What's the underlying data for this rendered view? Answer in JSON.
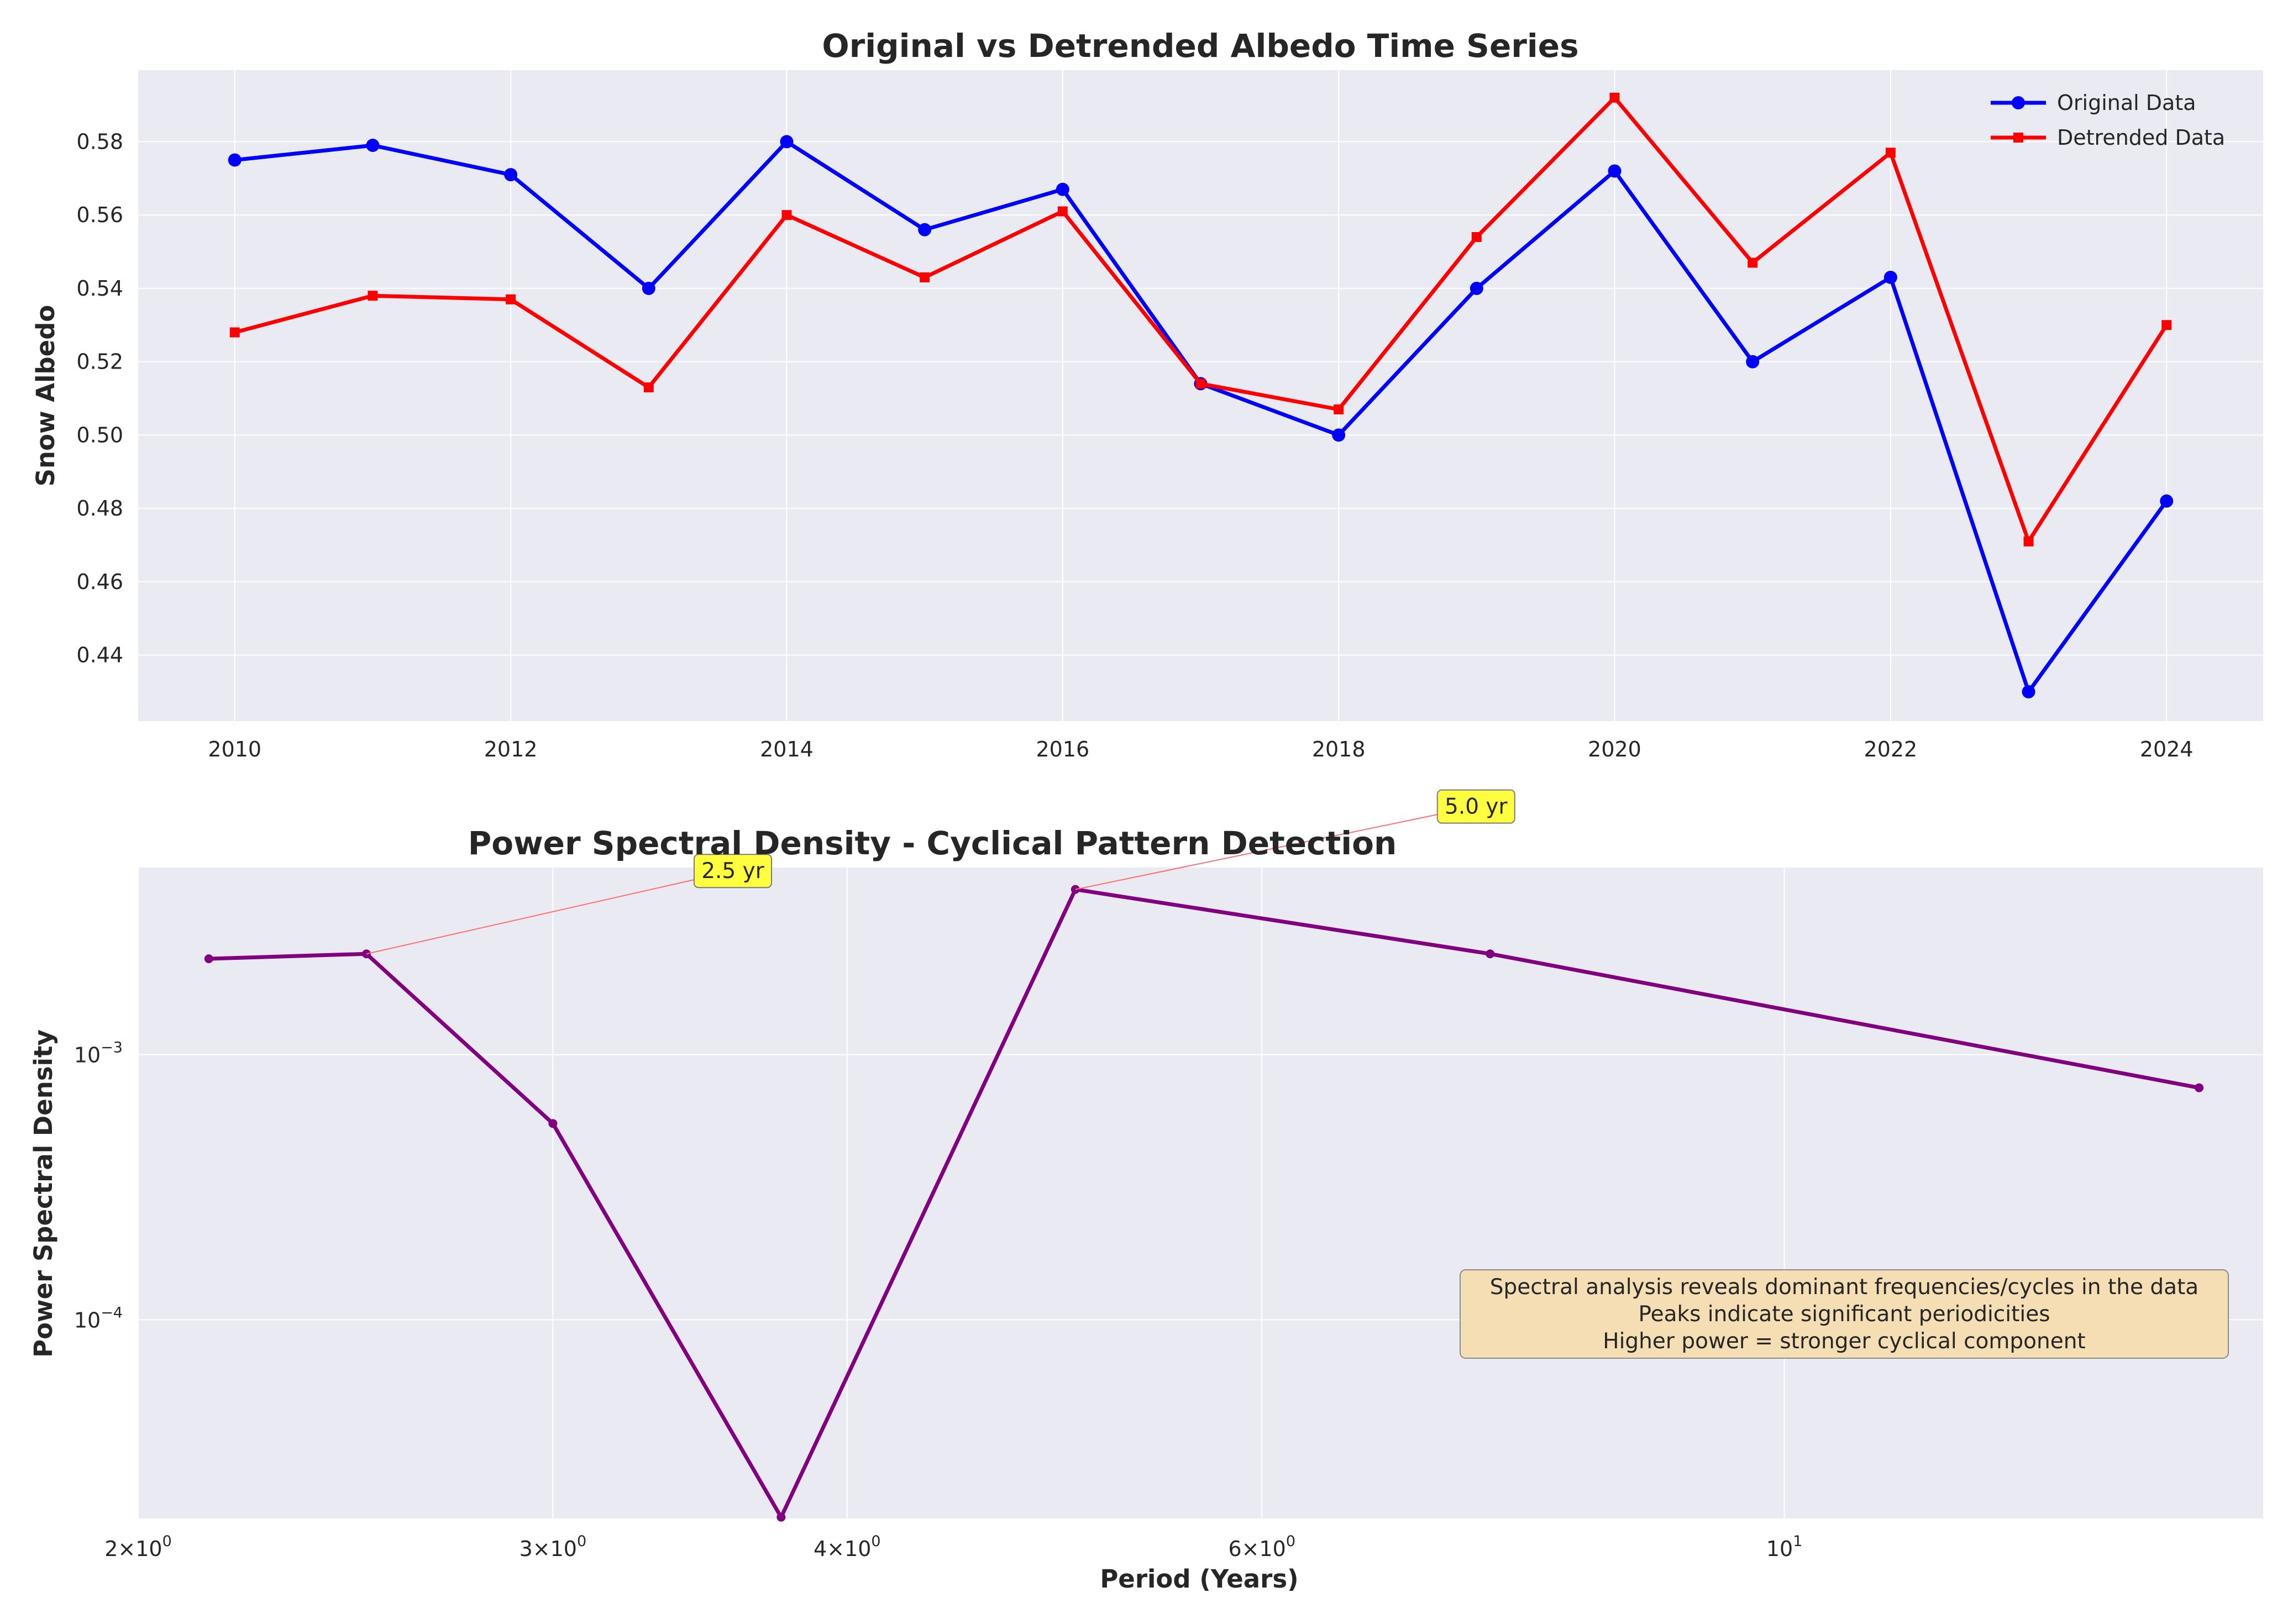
{
  "chart_data": [
    {
      "type": "line",
      "title": "Original vs Detrended Albedo Time Series",
      "xlabel": "",
      "ylabel": "Snow Albedo",
      "x": [
        2010,
        2011,
        2012,
        2013,
        2014,
        2015,
        2016,
        2017,
        2018,
        2019,
        2020,
        2021,
        2022,
        2023,
        2024
      ],
      "xlim": [
        2009.3,
        2024.7
      ],
      "ylim": [
        0.422,
        0.5995
      ],
      "xticks": [
        2010,
        2012,
        2014,
        2016,
        2018,
        2020,
        2022,
        2024
      ],
      "yticks": [
        0.44,
        0.46,
        0.48,
        0.5,
        0.52,
        0.54,
        0.56,
        0.58
      ],
      "ytick_labels": [
        "0.44",
        "0.46",
        "0.48",
        "0.50",
        "0.52",
        "0.54",
        "0.56",
        "0.58"
      ],
      "grid": true,
      "legend": "top-right",
      "series": [
        {
          "name": "Original Data",
          "color": "#0000ff",
          "marker": "circle",
          "values": [
            0.575,
            0.579,
            0.571,
            0.54,
            0.58,
            0.556,
            0.567,
            0.514,
            0.5,
            0.54,
            0.572,
            0.52,
            0.543,
            0.43,
            0.482
          ]
        },
        {
          "name": "Detrended Data",
          "color": "#ff0000",
          "marker": "square",
          "values": [
            0.528,
            0.538,
            0.537,
            0.513,
            0.56,
            0.543,
            0.561,
            0.514,
            0.507,
            0.554,
            0.592,
            0.547,
            0.577,
            0.471,
            0.53
          ]
        }
      ]
    },
    {
      "type": "line",
      "title": "Power Spectral Density - Cyclical Pattern Detection",
      "xlabel": "Period (Years)",
      "ylabel": "Power Spectral Density",
      "xscale": "log",
      "yscale": "log",
      "xlim": [
        2.0,
        15.97
      ],
      "ylim": [
        1.78e-05,
        0.00508
      ],
      "xticks": [
        2,
        3,
        4,
        6,
        10
      ],
      "xtick_labels": [
        {
          "base": "2",
          "times": "×",
          "ten": "10",
          "exp": "0"
        },
        {
          "base": "3",
          "times": "×",
          "ten": "10",
          "exp": "0"
        },
        {
          "base": "4",
          "times": "×",
          "ten": "10",
          "exp": "0"
        },
        {
          "base": "6",
          "times": "×",
          "ten": "10",
          "exp": "0"
        },
        {
          "base": "",
          "times": "",
          "ten": "10",
          "exp": "1"
        }
      ],
      "yticks": [
        0.0001,
        0.001
      ],
      "ytick_labels": [
        {
          "ten": "10",
          "exp": "−4"
        },
        {
          "ten": "10",
          "exp": "−3"
        }
      ],
      "grid": true,
      "series": [
        {
          "color": "#800080",
          "x": [
            2.143,
            2.5,
            3.0,
            3.75,
            5.0,
            7.5,
            15.0
          ],
          "values": [
            0.0023,
            0.0024,
            0.00055,
            1.8e-05,
            0.0042,
            0.0024,
            0.00075
          ]
        }
      ],
      "annotations": [
        {
          "text": "2.5 yr",
          "x": 2.5,
          "y": 0.0024,
          "box_color": "#ffff40"
        },
        {
          "text": "5.0 yr",
          "x": 5.0,
          "y": 0.0042,
          "box_color": "#ffff40"
        }
      ],
      "note": {
        "lines": [
          "Spectral analysis reveals dominant frequencies/cycles in the data",
          "Peaks indicate significant periodicities",
          "Higher power = stronger cyclical component"
        ],
        "box_color": "#f5deb3"
      }
    }
  ],
  "colors": {
    "axes_background": "#eaeaf2",
    "grid": "#ffffff",
    "annotation_arrow": "#ff6f6f"
  }
}
